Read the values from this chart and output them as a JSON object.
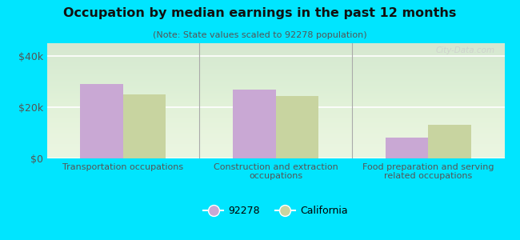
{
  "title": "Occupation by median earnings in the past 12 months",
  "subtitle": "(Note: State values scaled to 92278 population)",
  "categories": [
    "Transportation occupations",
    "Construction and extraction\noccupations",
    "Food preparation and serving\nrelated occupations"
  ],
  "values_92278": [
    29000,
    27000,
    8000
  ],
  "values_california": [
    25000,
    24500,
    13000
  ],
  "color_92278": "#c9a8d4",
  "color_california": "#c8d4a0",
  "ylim": [
    0,
    45000
  ],
  "yticks": [
    0,
    20000,
    40000
  ],
  "ytick_labels": [
    "$0",
    "$20k",
    "$40k"
  ],
  "background_outer": "#00e5ff",
  "legend_label_92278": "92278",
  "legend_label_california": "California",
  "watermark": "City-Data.com",
  "bar_width": 0.28
}
